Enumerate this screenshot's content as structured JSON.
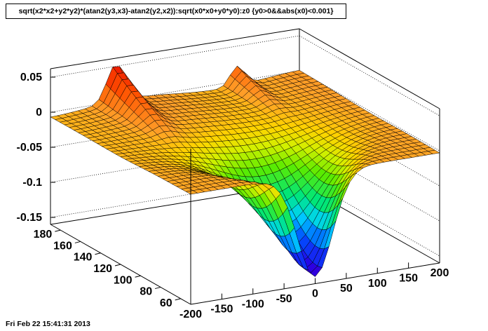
{
  "title": "sqrt(x2*x2+y2*y2)*(atan2(y3,x3)-atan2(y2,x2)):sqrt(x0*x0+y0*y0):z0 {y0>0&&abs(x0)<0.001}",
  "footer": "Fri Feb 22 15:41:31 2013",
  "chart_data": {
    "type": "surface",
    "title": "sqrt(x2*x2+y2*y2)*(atan2(y3,x3)-atan2(y2,x2)):sqrt(x0*x0+y0*y0):z0 {y0>0&&abs(x0)<0.001}",
    "x_axis": {
      "range": [
        -200,
        200
      ],
      "ticks": [
        "-200",
        "-150",
        "-100",
        "-50",
        "0",
        "50",
        "100",
        "150",
        "200"
      ]
    },
    "y_axis": {
      "range": [
        50,
        190
      ],
      "ticks": [
        "60",
        "80",
        "100",
        "120",
        "140",
        "160",
        "180"
      ]
    },
    "z_axis": {
      "range": [
        -0.16,
        0.06
      ],
      "ticks": [
        "0.05",
        "0",
        "-0.05",
        "-0.1",
        "-0.15"
      ]
    },
    "grid": true,
    "colormap": "rainbow",
    "surface_description": "near-flat sheet at z≈0 with a minimum of about -0.15 near x=0, y≈60 and ridges up to about 0.05 near x≈±100 at large y"
  }
}
